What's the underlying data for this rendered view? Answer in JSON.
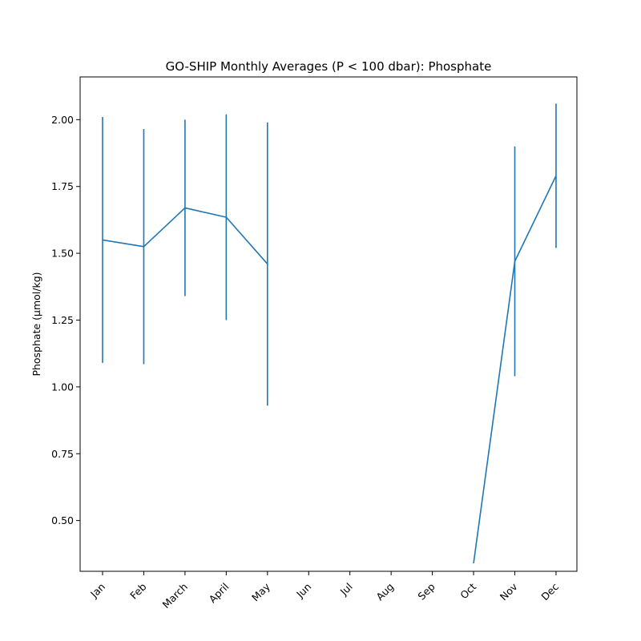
{
  "chart_data": {
    "type": "line",
    "title": "GO-SHIP Monthly Averages (P < 100 dbar): Phosphate",
    "xlabel": "",
    "ylabel": "Phosphate (µmol/kg)",
    "categories": [
      "Jan",
      "Feb",
      "March",
      "April",
      "May",
      "Jun",
      "Jul",
      "Aug",
      "Sep",
      "Oct",
      "Nov",
      "Dec"
    ],
    "ylim": [
      0.31,
      2.16
    ],
    "yticks": [
      "0.50",
      "0.75",
      "1.00",
      "1.25",
      "1.50",
      "1.75",
      "2.00"
    ],
    "series": [
      {
        "values": [
          1.55,
          1.525,
          1.67,
          1.635,
          1.46,
          null,
          null,
          null,
          null,
          0.34,
          1.47,
          1.79
        ],
        "error": [
          0.46,
          0.44,
          0.33,
          0.385,
          0.53,
          null,
          null,
          null,
          null,
          0,
          0.43,
          0.27
        ],
        "color": "#1f77b4"
      }
    ],
    "grid": false,
    "error_bars": true
  }
}
